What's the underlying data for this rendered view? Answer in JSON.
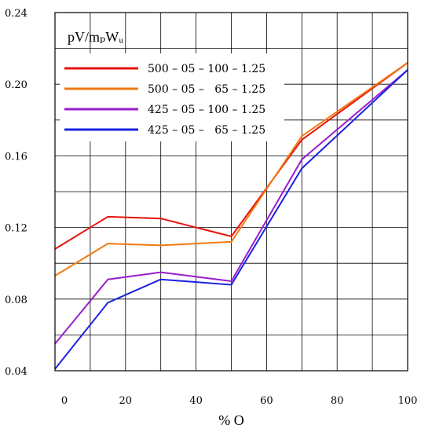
{
  "chart_data": {
    "type": "line",
    "title": "pV/mₚWᵤ",
    "xlabel": "% O",
    "ylabel": "",
    "xlim": [
      0,
      100
    ],
    "ylim": [
      0.04,
      0.24
    ],
    "x_ticks": [
      0,
      20,
      40,
      60,
      80,
      100
    ],
    "x_tick_labels": [
      "0",
      "20",
      "40",
      "60",
      "80",
      "100"
    ],
    "y_ticks": [
      0.04,
      0.08,
      0.12,
      0.16,
      0.2,
      0.24
    ],
    "y_tick_labels": [
      "0.04",
      "0.08",
      "0.12",
      "0.16",
      "0.20",
      "0.24"
    ],
    "grid": true,
    "legend_position": "top-left",
    "x": [
      0,
      15,
      30,
      50,
      70,
      100
    ],
    "series": [
      {
        "name": "500 – 05 – 100 – 1.25",
        "color": "#e8120c",
        "values": [
          0.108,
          0.126,
          0.125,
          0.115,
          0.169,
          0.212
        ]
      },
      {
        "name": "500 – 05 –   65 – 1.25",
        "color": "#f07a12",
        "values": [
          0.093,
          0.111,
          0.11,
          0.112,
          0.171,
          0.212
        ]
      },
      {
        "name": "425 – 05 – 100 – 1.25",
        "color": "#9a1ccc",
        "values": [
          0.055,
          0.091,
          0.095,
          0.09,
          0.158,
          0.208
        ]
      },
      {
        "name": "425 – 05 –   65 – 1.25",
        "color": "#1a22e0",
        "values": [
          0.041,
          0.078,
          0.091,
          0.088,
          0.153,
          0.208
        ]
      }
    ]
  }
}
